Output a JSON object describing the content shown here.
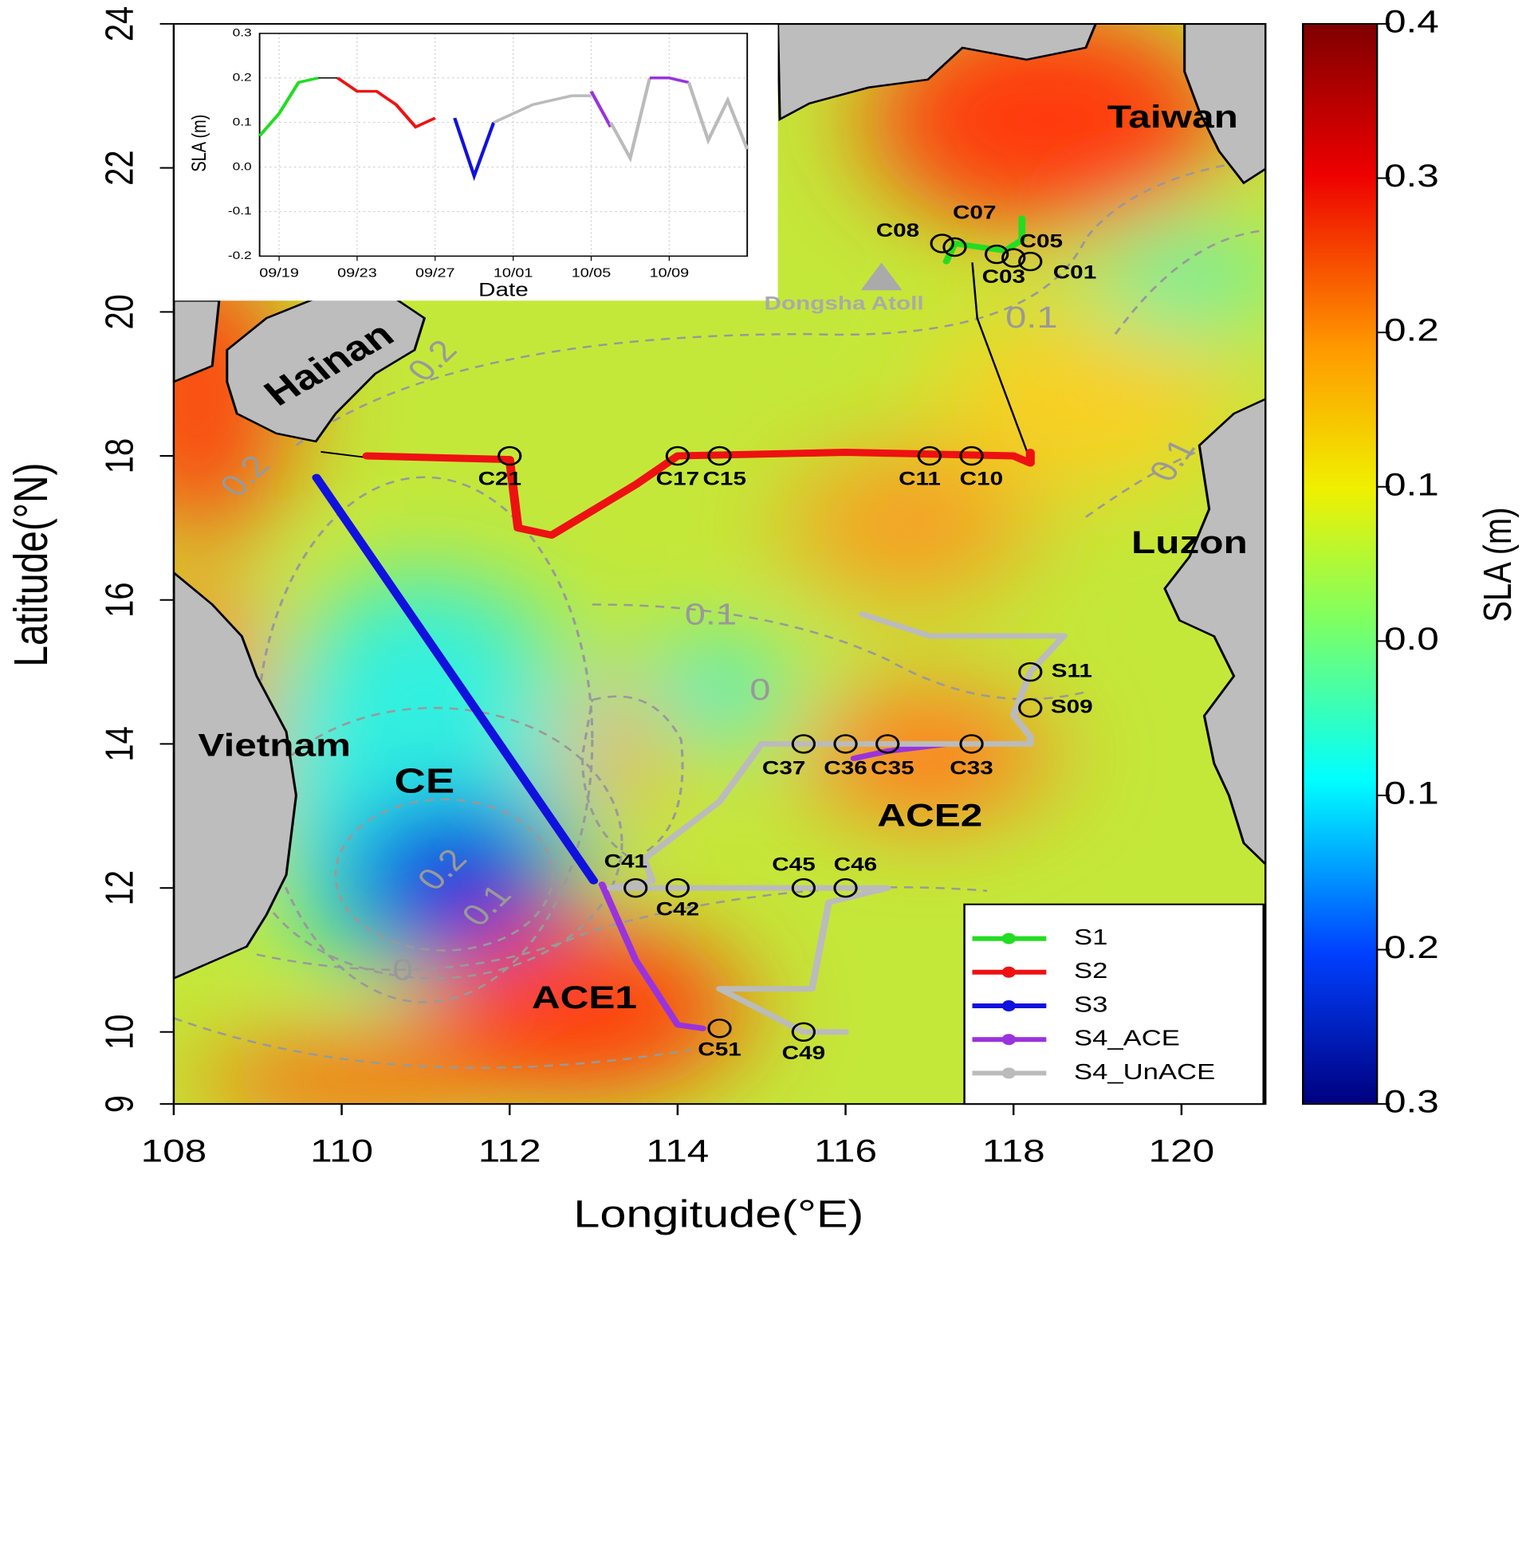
{
  "map": {
    "x_label": "Longitude(°E)",
    "y_label": "Latitude(°N)",
    "xlim": [
      108,
      121
    ],
    "ylim": [
      9,
      24
    ],
    "xticks": [
      108,
      110,
      112,
      114,
      116,
      118,
      120
    ],
    "yticks": [
      9,
      10,
      12,
      14,
      16,
      18,
      20,
      22,
      24
    ],
    "regions": [
      "Taiwan",
      "Hainan",
      "Luzon",
      "Vietnam",
      "CE",
      "ACE1",
      "ACE2",
      "Dongsha Atoll"
    ],
    "contour_labels": [
      "0.1",
      "0",
      "0.2",
      "0.1",
      "0",
      "0.2",
      "0.2",
      "0.1",
      "0.1"
    ],
    "tracks": [
      {
        "name": "S1",
        "color": "#22dd22",
        "lon": [
          117.2,
          117.3,
          117.6,
          117.9,
          118.1,
          118.1
        ],
        "lat": [
          20.7,
          20.95,
          20.9,
          20.85,
          21.0,
          21.3
        ]
      },
      {
        "name": "S2",
        "color": "#ee1111",
        "lon": [
          110.3,
          112.0,
          112.1,
          112.5,
          113.5,
          114.0,
          116.0,
          118.0,
          118.2,
          118.2
        ],
        "lat": [
          18.0,
          17.95,
          17.0,
          16.9,
          17.6,
          18.0,
          18.05,
          18.0,
          17.9,
          18.05
        ]
      },
      {
        "name": "S3",
        "color": "#1111dd",
        "lon": [
          109.7,
          113.0
        ],
        "lat": [
          17.7,
          12.1
        ]
      },
      {
        "name": "S4_ACE",
        "color": "#9933dd",
        "lon": [
          113.1,
          113.5,
          114.0,
          114.3,
          null,
          116.1,
          116.5,
          117.2
        ],
        "lat": [
          12.05,
          11.0,
          10.1,
          10.05,
          null,
          13.8,
          13.9,
          14.0
        ]
      },
      {
        "name": "S4_UnACE",
        "color": "#bbbbbb",
        "lon": [
          116.2,
          117.0,
          118.6,
          118.2,
          118.0,
          118.2,
          118.2,
          115.0,
          114.5,
          113.6,
          113.7,
          113.2,
          114.5,
          116.5,
          115.8,
          115.6,
          114.5,
          115.5,
          116.0
        ],
        "lat": [
          15.8,
          15.5,
          15.5,
          15.0,
          14.4,
          14.1,
          14.0,
          14.0,
          13.2,
          12.4,
          12.1,
          12.0,
          12.0,
          12.0,
          11.8,
          10.6,
          10.6,
          10.0,
          10.0
        ]
      }
    ],
    "stations": [
      {
        "name": "C21",
        "lon": 112.0,
        "lat": 18.0
      },
      {
        "name": "C17",
        "lon": 114.0,
        "lat": 18.0
      },
      {
        "name": "C15",
        "lon": 114.5,
        "lat": 18.0
      },
      {
        "name": "C11",
        "lon": 117.0,
        "lat": 18.0
      },
      {
        "name": "C10",
        "lon": 117.5,
        "lat": 18.0
      },
      {
        "name": "C08",
        "lon": 117.15,
        "lat": 20.95
      },
      {
        "name": "C07",
        "lon": 117.3,
        "lat": 20.9
      },
      {
        "name": "C05",
        "lon": 117.8,
        "lat": 20.8
      },
      {
        "name": "C03",
        "lon": 118.0,
        "lat": 20.75
      },
      {
        "name": "C01",
        "lon": 118.2,
        "lat": 20.7
      },
      {
        "name": "S11",
        "lon": 118.2,
        "lat": 15.0
      },
      {
        "name": "S09",
        "lon": 118.2,
        "lat": 14.5
      },
      {
        "name": "C37",
        "lon": 115.5,
        "lat": 14.0
      },
      {
        "name": "C36",
        "lon": 116.0,
        "lat": 14.0
      },
      {
        "name": "C35",
        "lon": 116.5,
        "lat": 14.0
      },
      {
        "name": "C33",
        "lon": 117.5,
        "lat": 14.0
      },
      {
        "name": "C41",
        "lon": 113.5,
        "lat": 12.0
      },
      {
        "name": "C42",
        "lon": 114.0,
        "lat": 12.0
      },
      {
        "name": "C45",
        "lon": 115.5,
        "lat": 12.0
      },
      {
        "name": "C46",
        "lon": 116.0,
        "lat": 12.0
      },
      {
        "name": "C51",
        "lon": 114.5,
        "lat": 10.05
      },
      {
        "name": "C49",
        "lon": 115.5,
        "lat": 10.0
      }
    ]
  },
  "colorbar": {
    "label": "SLA (m)",
    "lim": [
      -0.3,
      0.4
    ],
    "ticks": [
      0.4,
      0.3,
      0.2,
      0.1,
      {
        "value": 0,
        "label": "0.0"
      },
      {
        "value": -0.1,
        "label": "0.1"
      },
      {
        "value": -0.2,
        "label": "0.2"
      },
      {
        "value": -0.3,
        "label": "0.3"
      }
    ]
  },
  "chart_data": {
    "type": "line",
    "x_label": "Date",
    "y_label": "SLA (m)",
    "xlim": [
      "09/18",
      "10/13"
    ],
    "ylim": [
      -0.2,
      0.3
    ],
    "xticks": [
      "09/19",
      "09/23",
      "09/27",
      "10/01",
      "10/05",
      "10/09"
    ],
    "yticks": [
      0.3,
      0.2,
      0.1,
      {
        "value": 0,
        "label": "0.0"
      },
      -0.1,
      -0.2
    ],
    "grid": true,
    "series": [
      {
        "color": "#22dd22",
        "x": [
          "09/18",
          "09/19",
          "09/20",
          "09/21"
        ],
        "values": [
          0.07,
          0.12,
          0.19,
          0.2
        ]
      },
      {
        "color": "#000000",
        "x": [
          "09/21",
          "09/22"
        ],
        "values": [
          0.2,
          0.2
        ]
      },
      {
        "color": "#ee1111",
        "x": [
          "09/22",
          "09/23",
          "09/24",
          "09/25",
          "09/26",
          "09/27"
        ],
        "values": [
          0.2,
          0.17,
          0.17,
          0.14,
          0.09,
          0.11
        ]
      },
      {
        "color": "#1111dd",
        "x": [
          "09/28",
          "09/29",
          "09/30"
        ],
        "values": [
          0.11,
          -0.02,
          0.1
        ]
      },
      {
        "color": "#bbbbbb",
        "x": [
          "09/30",
          "10/01",
          "10/02",
          "10/03",
          "10/04",
          "10/05"
        ],
        "values": [
          0.1,
          0.12,
          0.14,
          0.15,
          0.16,
          0.16
        ]
      },
      {
        "color": "#9933dd",
        "x": [
          "10/05",
          "10/06"
        ],
        "values": [
          0.17,
          0.09
        ]
      },
      {
        "color": "#bbbbbb",
        "x": [
          "10/06",
          "10/07",
          "10/08"
        ],
        "values": [
          0.1,
          0.02,
          0.2
        ]
      },
      {
        "color": "#9933dd",
        "x": [
          "10/08",
          "10/09",
          "10/10"
        ],
        "values": [
          0.2,
          0.2,
          0.19
        ]
      },
      {
        "color": "#bbbbbb",
        "x": [
          "10/10",
          "10/11",
          "10/12",
          "10/13"
        ],
        "values": [
          0.19,
          0.06,
          0.15,
          0.04
        ]
      }
    ]
  }
}
